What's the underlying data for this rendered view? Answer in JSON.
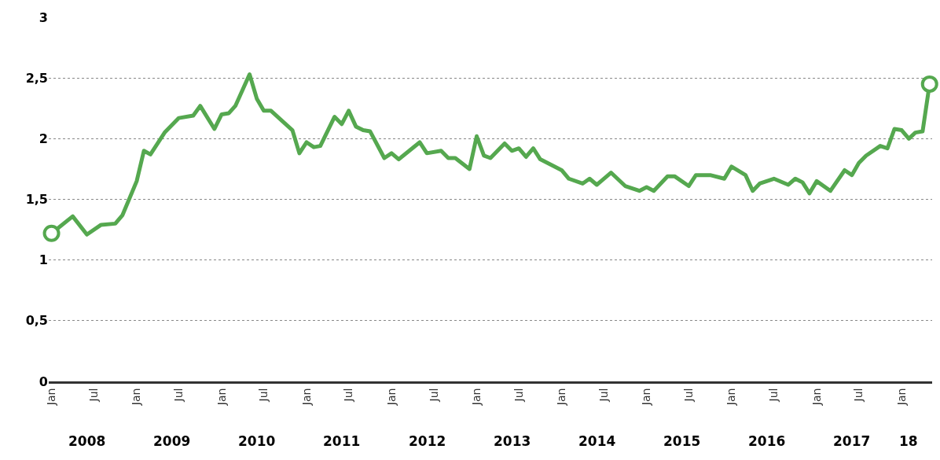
{
  "chart_data": {
    "type": "line",
    "x": [
      "2008-01",
      "2008-04",
      "2008-06",
      "2008-08",
      "2008-10",
      "2008-11",
      "2009-01",
      "2009-02",
      "2009-03",
      "2009-05",
      "2009-07",
      "2009-09",
      "2009-10",
      "2009-12",
      "2010-01",
      "2010-02",
      "2010-03",
      "2010-05",
      "2010-06",
      "2010-07",
      "2010-08",
      "2010-11",
      "2010-12",
      "2011-01",
      "2011-02",
      "2011-03",
      "2011-05",
      "2011-06",
      "2011-07",
      "2011-08",
      "2011-09",
      "2011-10",
      "2011-12",
      "2012-01",
      "2012-02",
      "2012-05",
      "2012-06",
      "2012-08",
      "2012-09",
      "2012-10",
      "2012-12",
      "2013-01",
      "2013-02",
      "2013-03",
      "2013-05",
      "2013-06",
      "2013-07",
      "2013-08",
      "2013-09",
      "2013-10",
      "2013-12",
      "2014-01",
      "2014-02",
      "2014-04",
      "2014-05",
      "2014-06",
      "2014-08",
      "2014-10",
      "2014-12",
      "2015-01",
      "2015-02",
      "2015-04",
      "2015-05",
      "2015-07",
      "2015-08",
      "2015-10",
      "2015-12",
      "2016-01",
      "2016-03",
      "2016-04",
      "2016-05",
      "2016-07",
      "2016-09",
      "2016-10",
      "2016-11",
      "2016-12",
      "2017-01",
      "2017-03",
      "2017-05",
      "2017-06",
      "2017-07",
      "2017-08",
      "2017-10",
      "2017-11",
      "2017-12",
      "2018-01",
      "2018-02",
      "2018-03",
      "2018-04",
      "2018-05"
    ],
    "series": [
      {
        "color": "#55a84f",
        "marker": "none",
        "line_style": "solid",
        "values": [
          1.22,
          1.36,
          1.21,
          1.29,
          1.3,
          1.37,
          1.65,
          1.9,
          1.87,
          2.05,
          2.17,
          2.19,
          2.27,
          2.08,
          2.2,
          2.21,
          2.27,
          2.53,
          2.33,
          2.23,
          2.23,
          2.07,
          1.88,
          1.97,
          1.93,
          1.94,
          2.18,
          2.12,
          2.23,
          2.1,
          2.07,
          2.06,
          1.84,
          1.88,
          1.83,
          1.97,
          1.88,
          1.9,
          1.84,
          1.84,
          1.75,
          2.02,
          1.86,
          1.84,
          1.96,
          1.9,
          1.92,
          1.85,
          1.92,
          1.83,
          1.77,
          1.74,
          1.67,
          1.63,
          1.67,
          1.62,
          1.72,
          1.61,
          1.57,
          1.6,
          1.57,
          1.69,
          1.69,
          1.61,
          1.7,
          1.7,
          1.67,
          1.77,
          1.7,
          1.57,
          1.63,
          1.67,
          1.62,
          1.67,
          1.64,
          1.55,
          1.65,
          1.57,
          1.74,
          1.7,
          1.8,
          1.86,
          1.94,
          1.92,
          2.08,
          2.07,
          2.0,
          2.05,
          2.06,
          2.45
        ]
      },
      {
        "color": "#55a84f",
        "type": "scatter",
        "marker": "circle",
        "x": [
          "2008-01",
          "2018-05"
        ],
        "values": [
          1.22,
          2.45
        ]
      }
    ],
    "xlim": [
      "2007-12-20",
      "2018-05-12"
    ],
    "xticks": [
      {
        "value": "2008-01",
        "label": "Jan"
      },
      {
        "value": "2008-07",
        "label": "Jul"
      },
      {
        "value": "2009-01",
        "label": "Jan"
      },
      {
        "value": "2009-07",
        "label": "Jul"
      },
      {
        "value": "2010-01",
        "label": "Jan"
      },
      {
        "value": "2010-07",
        "label": "Jul"
      },
      {
        "value": "2011-01",
        "label": "Jan"
      },
      {
        "value": "2011-07",
        "label": "Jul"
      },
      {
        "value": "2012-01",
        "label": "Jan"
      },
      {
        "value": "2012-07",
        "label": "Jul"
      },
      {
        "value": "2013-01",
        "label": "Jan"
      },
      {
        "value": "2013-07",
        "label": "Jul"
      },
      {
        "value": "2014-01",
        "label": "Jan"
      },
      {
        "value": "2014-07",
        "label": "Jul"
      },
      {
        "value": "2015-01",
        "label": "Jan"
      },
      {
        "value": "2015-07",
        "label": "Jul"
      },
      {
        "value": "2016-01",
        "label": "Jan"
      },
      {
        "value": "2016-07",
        "label": "Jul"
      },
      {
        "value": "2017-01",
        "label": "Jan"
      },
      {
        "value": "2017-07",
        "label": "Jul"
      },
      {
        "value": "2018-01",
        "label": "Jan"
      }
    ],
    "x2lim": [
      "2007-12-20",
      "2018-05-12"
    ],
    "x2ticks": [
      {
        "value": "2008-06",
        "label": "2008"
      },
      {
        "value": "2009-06",
        "label": "2009"
      },
      {
        "value": "2010-06",
        "label": "2010"
      },
      {
        "value": "2011-06",
        "label": "2011"
      },
      {
        "value": "2012-06",
        "label": "2012"
      },
      {
        "value": "2013-06",
        "label": "2013"
      },
      {
        "value": "2014-06",
        "label": "2014"
      },
      {
        "value": "2015-06",
        "label": "2015"
      },
      {
        "value": "2016-06",
        "label": "2016"
      },
      {
        "value": "2017-06",
        "label": "2017"
      },
      {
        "value": "2018-02",
        "label": "18"
      }
    ],
    "ylim": [
      0,
      3
    ],
    "yticks": [
      0,
      {
        "value": 0.5,
        "label": "0,5"
      },
      1,
      {
        "value": 1.5,
        "label": "1,5"
      },
      2,
      {
        "value": 2.5,
        "label": "2,5"
      },
      3
    ],
    "grid": "y"
  }
}
